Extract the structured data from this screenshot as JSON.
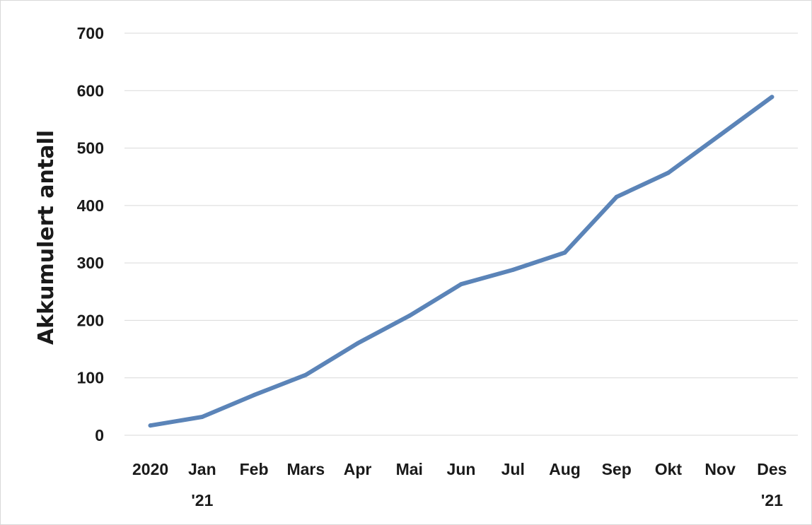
{
  "chart_data": {
    "type": "line",
    "ylabel": "Akkumulert antall",
    "xlabel": "",
    "ylim": [
      0,
      700
    ],
    "y_ticks": [
      0,
      100,
      200,
      300,
      400,
      500,
      600,
      700
    ],
    "grid": true,
    "categories": [
      [
        "2020"
      ],
      [
        "Jan",
        "'21"
      ],
      [
        "Feb"
      ],
      [
        "Mars"
      ],
      [
        "Apr"
      ],
      [
        "Mai"
      ],
      [
        "Jun"
      ],
      [
        "Jul"
      ],
      [
        "Aug"
      ],
      [
        "Sep"
      ],
      [
        "Okt"
      ],
      [
        "Nov"
      ],
      [
        "Des",
        "'21"
      ]
    ],
    "series": [
      {
        "values": [
          17,
          32,
          70,
          105,
          160,
          208,
          263,
          288,
          318,
          415,
          457,
          523,
          589
        ]
      }
    ],
    "colors": {
      "line": "#5b84b8",
      "grid": "#d9d9d9",
      "text": "#1a1a1a"
    }
  }
}
